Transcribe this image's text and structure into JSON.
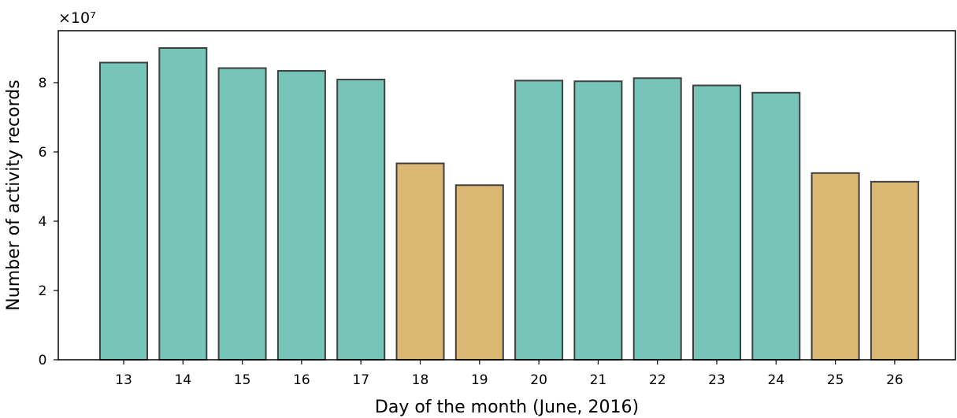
{
  "chart_data": {
    "type": "bar",
    "categories": [
      "13",
      "14",
      "15",
      "16",
      "17",
      "18",
      "19",
      "20",
      "21",
      "22",
      "23",
      "24",
      "25",
      "26"
    ],
    "values": [
      85800000,
      90000000,
      84200000,
      83400000,
      80900000,
      56700000,
      50400000,
      80600000,
      80400000,
      81300000,
      79200000,
      77100000,
      53900000,
      51400000
    ],
    "bar_colors": [
      "#76c5b8",
      "#76c5b8",
      "#76c5b8",
      "#76c5b8",
      "#76c5b8",
      "#dbb774",
      "#dbb774",
      "#76c5b8",
      "#76c5b8",
      "#76c5b8",
      "#76c5b8",
      "#76c5b8",
      "#dbb774",
      "#dbb774"
    ],
    "weekday_color": "#76c5b8",
    "weekend_color": "#dbb774",
    "edge_color": "#404040",
    "title": "",
    "xlabel": "Day of the month (June, 2016)",
    "ylabel": "Number of activity records",
    "ylim": [
      0,
      95000000
    ],
    "yticks": [
      0,
      20000000,
      40000000,
      60000000,
      80000000
    ],
    "ytick_labels": [
      "0",
      "2",
      "4",
      "6",
      "8"
    ],
    "offset_text": "×10⁷",
    "grid": false,
    "legend": "none"
  }
}
